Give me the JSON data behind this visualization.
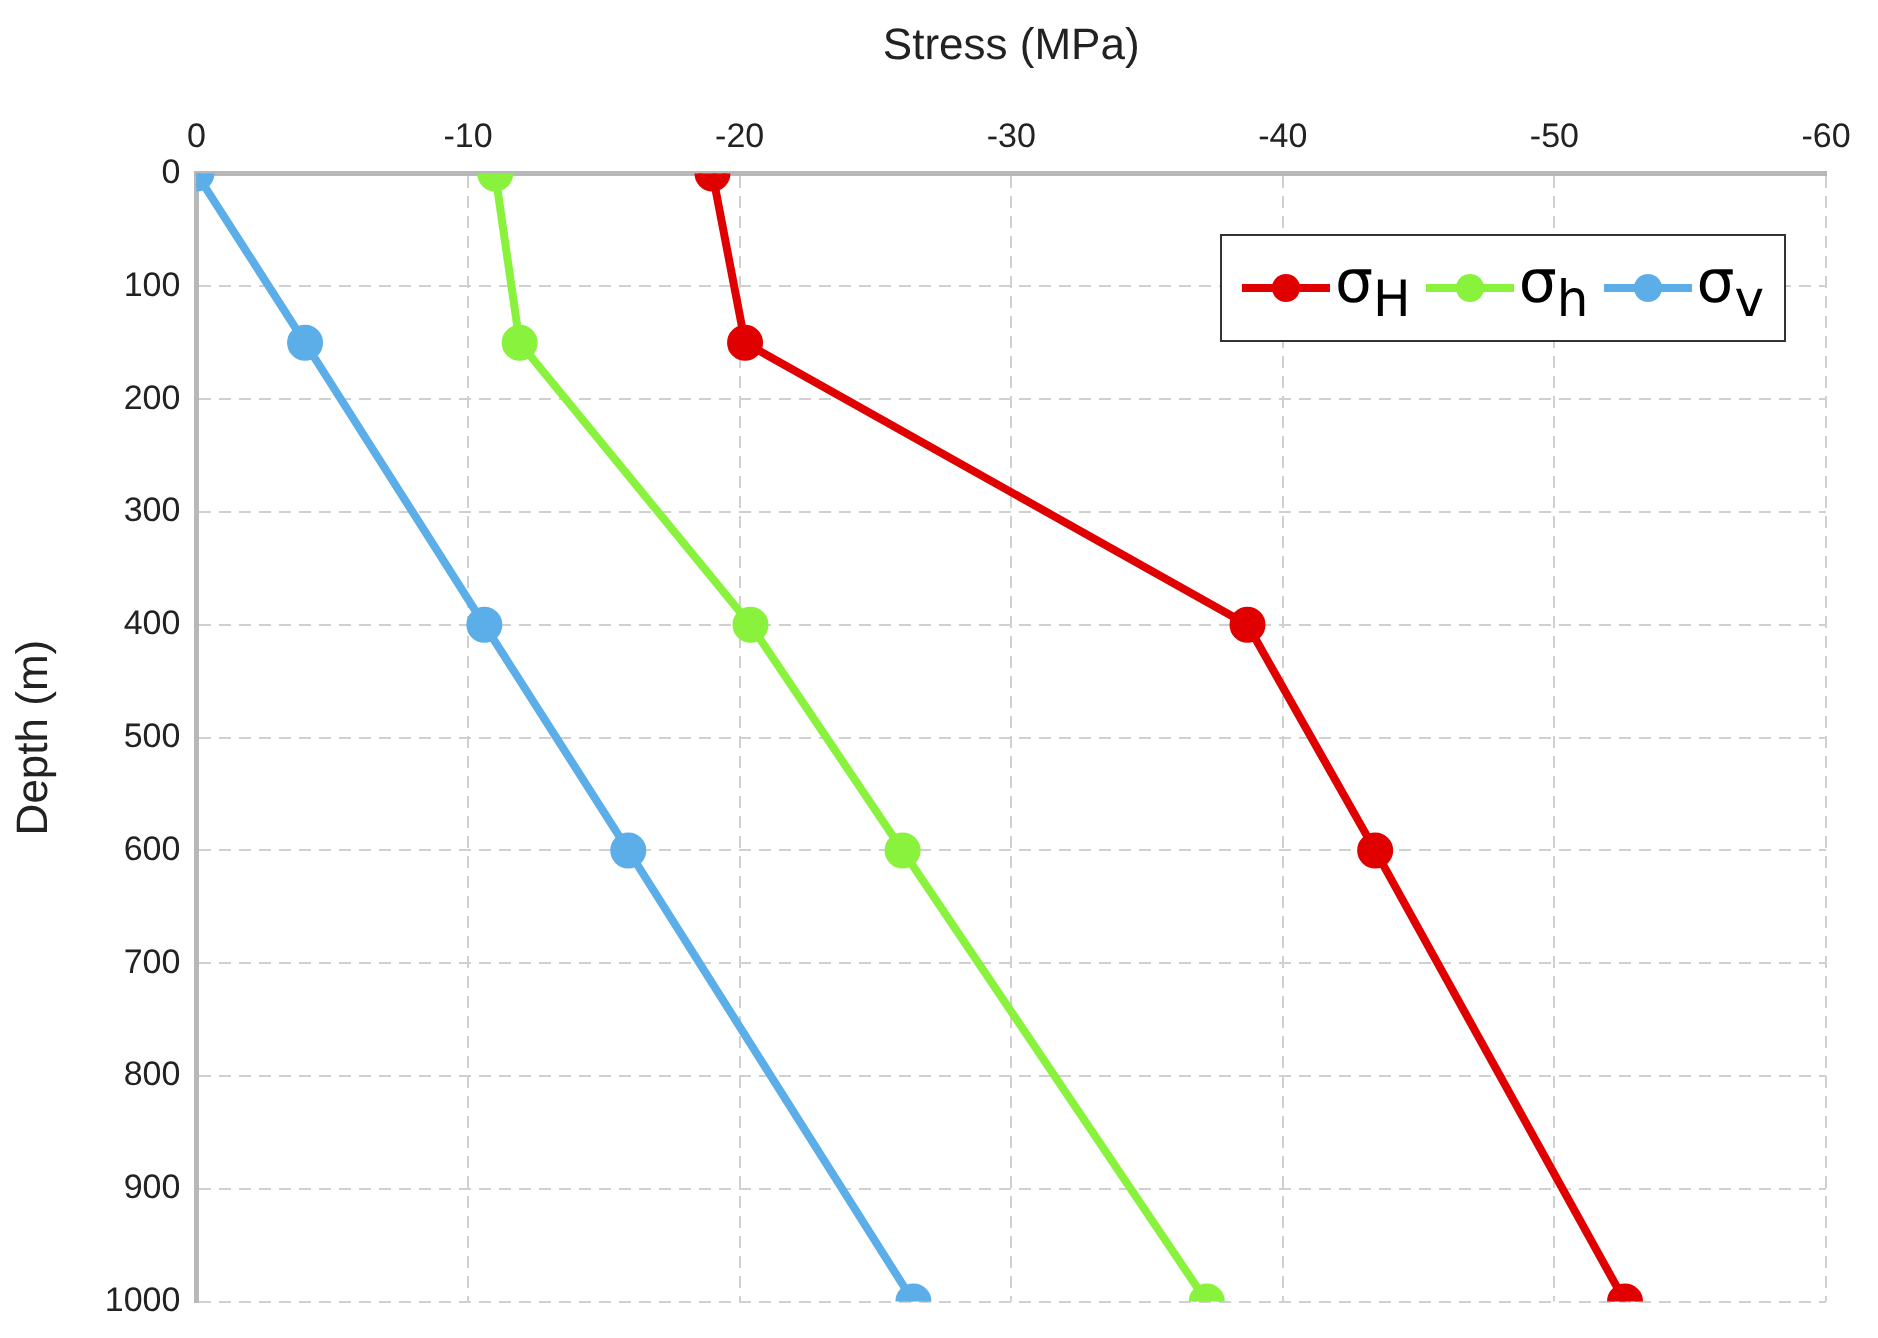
{
  "chart_data": {
    "type": "line",
    "xlabel": "Stress (MPa)",
    "ylabel": "Depth (m)",
    "series": [
      {
        "name": "σ$_{H}$",
        "color": "#e00000",
        "x": [
          -19.0,
          -20.2,
          -38.7,
          -43.4,
          -52.6
        ],
        "values": [
          0,
          150,
          400,
          600,
          1000
        ]
      },
      {
        "name": "σ$_{h}$",
        "color": "#88f23c",
        "x": [
          -11.0,
          -11.9,
          -20.4,
          -26.0,
          -37.2
        ],
        "values": [
          0,
          150,
          400,
          600,
          1000
        ]
      },
      {
        "name": "σ$_{v}$",
        "color": "#5caee8",
        "x": [
          0,
          -4.0,
          -10.6,
          -15.9,
          -26.4
        ],
        "values": [
          0,
          150,
          400,
          600,
          1000
        ]
      }
    ],
    "xlim": [
      0,
      -60
    ],
    "xticks": [
      0,
      -10,
      -20,
      -30,
      -40,
      -50,
      -60
    ],
    "ylim": [
      1000,
      0
    ],
    "yticks": [
      0,
      100,
      200,
      300,
      400,
      500,
      600,
      700,
      800,
      900,
      1000
    ],
    "grid": true,
    "legend": "top right",
    "marker": "circle",
    "line_style": "solid"
  }
}
